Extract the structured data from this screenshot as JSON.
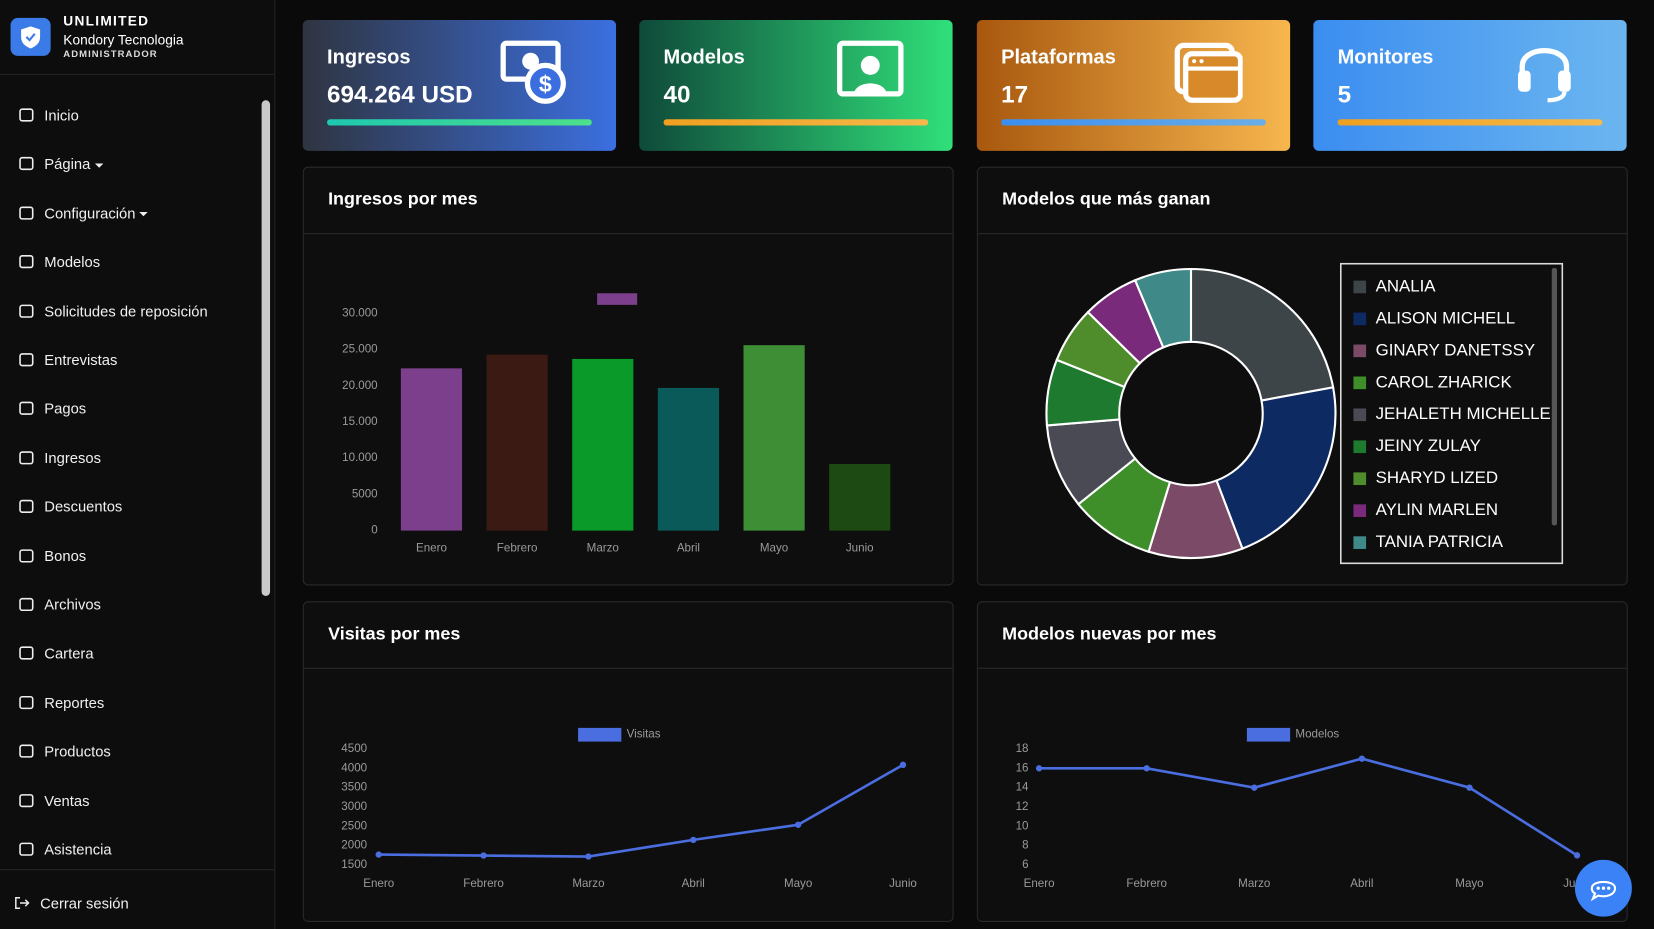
{
  "brand": {
    "name": "UNLIMITED",
    "company": "Kondory Tecnologia",
    "role": "ADMINISTRADOR"
  },
  "menu": [
    "Inicio",
    "Página",
    "Configuración",
    "Modelos",
    "Solicitudes de reposición",
    "Entrevistas",
    "Pagos",
    "Ingresos",
    "Descuentos",
    "Bonos",
    "Archivos",
    "Cartera",
    "Reportes",
    "Productos",
    "Ventas",
    "Asistencia"
  ],
  "logout": "Cerrar sesión",
  "cards": [
    {
      "title": "Ingresos",
      "value": "694.264 USD"
    },
    {
      "title": "Modelos",
      "value": 40
    },
    {
      "title": "Plataformas",
      "value": 17
    },
    {
      "title": "Monitores",
      "value": 5
    }
  ],
  "chart_data": [
    {
      "type": "bar",
      "title": "Ingresos por mes",
      "categories": [
        "Enero",
        "Febrero",
        "Marzo",
        "Abril",
        "Mayo",
        "Junio"
      ],
      "values": [
        22400,
        24300,
        23700,
        19700,
        25600,
        9200
      ],
      "colors": [
        "#7b3f8c",
        "#3a1a12",
        "#0a9a2a",
        "#0b5a5a",
        "#3e8e35",
        "#1d4a12"
      ],
      "ylim": [
        0,
        30000
      ],
      "yticks": [
        0,
        5000,
        {
          "value": 10000,
          "label": "10.000"
        },
        {
          "value": 15000,
          "label": "15.000"
        },
        {
          "value": 20000,
          "label": "20.000"
        },
        {
          "value": 25000,
          "label": "25.000"
        },
        {
          "value": 30000,
          "label": "30.000"
        }
      ]
    },
    {
      "type": "doughnut",
      "title": "Modelos que más ganan",
      "labels": [
        "ANALIA",
        "ALISON MICHELL",
        "GINARY DANETSSY",
        "CAROL ZHARICK",
        "JEHALETH MICHELLE",
        "JEINY ZULAY",
        "SHARYD LIZED",
        "AYLIN MARLEN",
        "TANIA PATRICIA"
      ],
      "values": [
        21,
        21,
        10,
        9,
        9,
        7,
        6,
        6,
        6
      ],
      "colors": [
        "#3d4548",
        "#0d2a63",
        "#7a4a66",
        "#3e8e2a",
        "#4a4a55",
        "#1e7a2e",
        "#4e8c2c",
        "#7a2a7a",
        "#3f8a88"
      ],
      "legend": "right"
    },
    {
      "type": "line",
      "title": "Visitas por mes",
      "categories": [
        "Enero",
        "Febrero",
        "Marzo",
        "Abril",
        "Mayo",
        "Junio"
      ],
      "series": [
        {
          "name": "Visitas",
          "color": "#4a6ee0",
          "values": [
            1770,
            1745,
            1720,
            2150,
            2540,
            4090
          ]
        }
      ],
      "ylim": [
        1500,
        4500
      ],
      "yticks": [
        1500,
        2000,
        2500,
        3000,
        3500,
        4000,
        4500
      ],
      "legend": "top"
    },
    {
      "type": "line",
      "title": "Modelos nuevas por mes",
      "categories": [
        "Enero",
        "Febrero",
        "Marzo",
        "Abril",
        "Mayo",
        "Junio"
      ],
      "series": [
        {
          "name": "Modelos",
          "color": "#4a6ee0",
          "values": [
            16,
            16,
            14,
            17,
            14,
            7
          ]
        }
      ],
      "ylim": [
        6,
        18
      ],
      "yticks": [
        6,
        8,
        10,
        12,
        14,
        16,
        18
      ],
      "legend": "top"
    }
  ]
}
